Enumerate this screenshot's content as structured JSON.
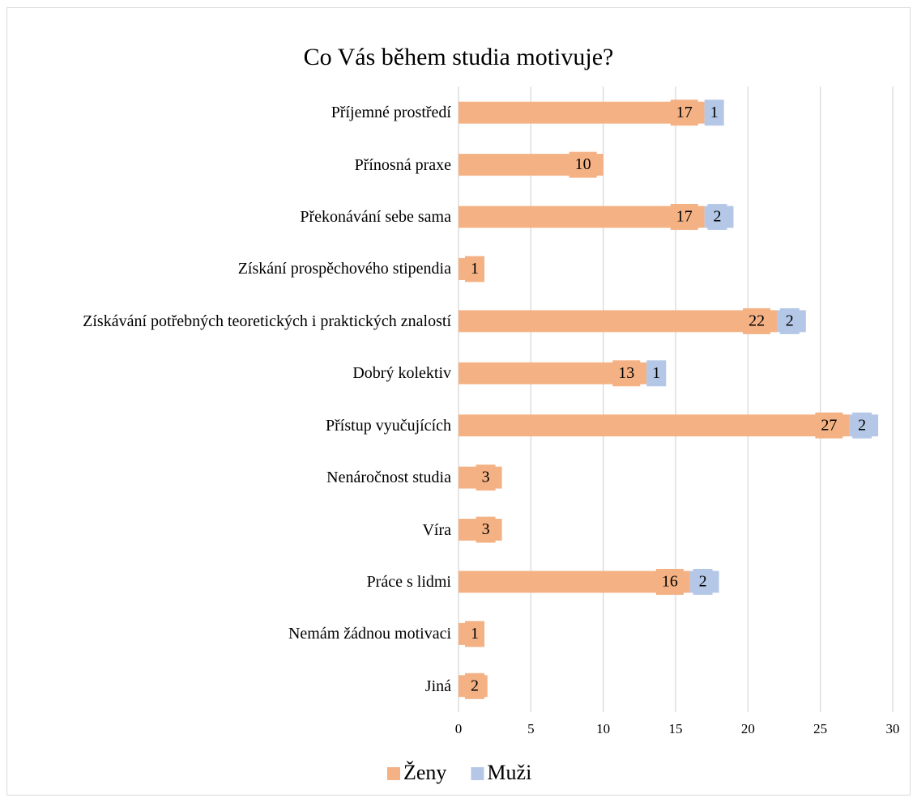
{
  "chart_data": {
    "type": "stacked-barh",
    "title": "Co Vás během studia motivuje?",
    "categories": [
      "Příjemné prostředí",
      "Přínosná praxe",
      "Překonávání sebe sama",
      "Získání prospěchového stipendia",
      "Získávání potřebných teoretických i praktických znalostí",
      "Dobrý kolektiv",
      "Přístup vyučujících",
      "Nenáročnost studia",
      "Víra",
      "Práce s lidmi",
      "Nemám žádnou motivaci",
      "Jiná"
    ],
    "series": [
      {
        "name": "Ženy",
        "color": "#f4b183",
        "values": [
          17,
          10,
          17,
          1,
          22,
          13,
          27,
          3,
          3,
          16,
          1,
          2
        ]
      },
      {
        "name": "Muži",
        "color": "#b4c7e7",
        "values": [
          1,
          null,
          2,
          null,
          2,
          1,
          2,
          null,
          null,
          2,
          null,
          null
        ]
      }
    ],
    "xlim": [
      0,
      30
    ],
    "xticks": [
      0,
      5,
      10,
      15,
      20,
      25,
      30
    ],
    "grid": true,
    "legend": "bottom"
  }
}
